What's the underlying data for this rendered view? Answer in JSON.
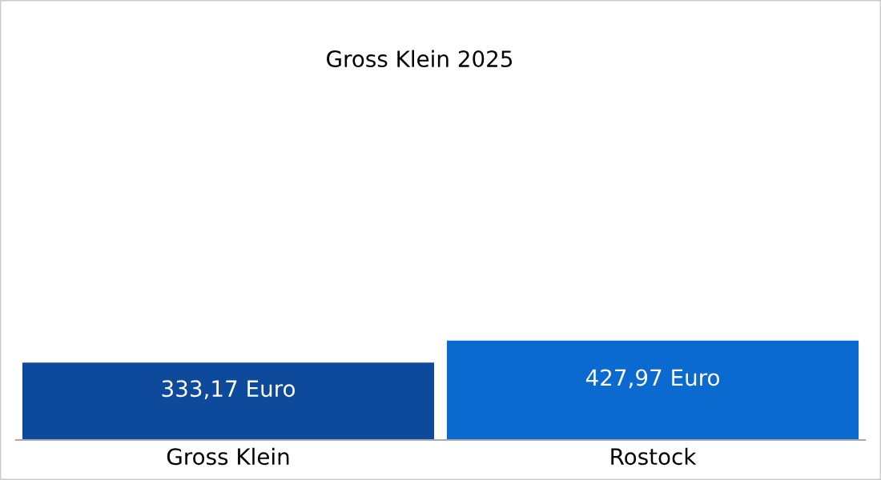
{
  "chart_data": {
    "type": "bar",
    "title": "Gross Klein 2025",
    "categories": [
      "Gross Klein",
      "Rostock"
    ],
    "values": [
      333.17,
      427.97
    ],
    "colors": [
      "#0d4a9b",
      "#0a6acf"
    ],
    "value_labels": [
      "333,17 Euro",
      "427,97 Euro"
    ],
    "grid": false,
    "legend": false
  }
}
